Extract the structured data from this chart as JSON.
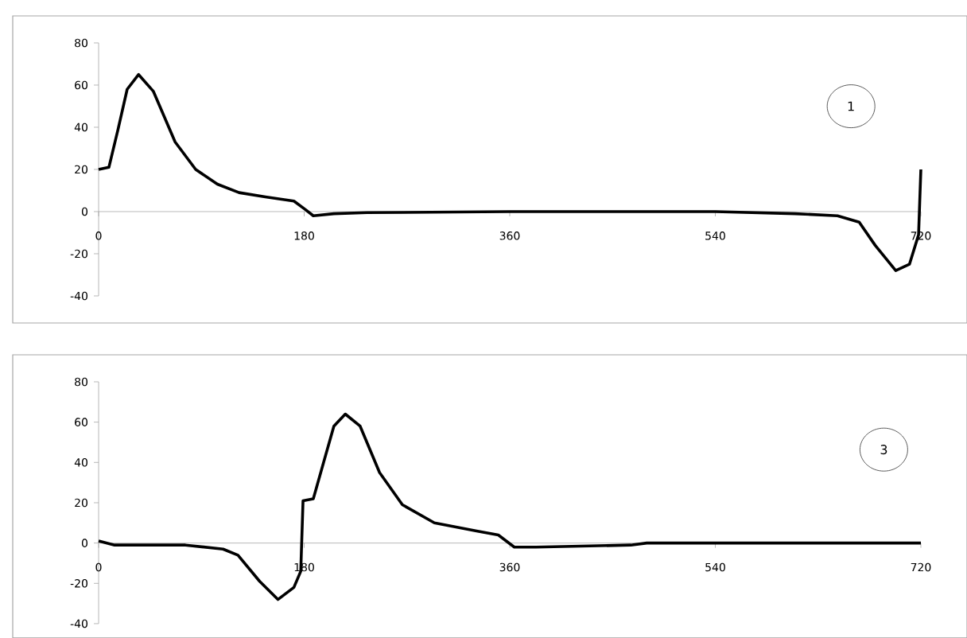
{
  "chart_data": [
    {
      "type": "line",
      "xlim": [
        0,
        720
      ],
      "xticks": [
        0,
        180,
        360,
        540,
        720
      ],
      "ylim": [
        -40,
        80
      ],
      "yticks": [
        -40,
        -20,
        0,
        20,
        40,
        60,
        80
      ],
      "marker": "none",
      "line_style": "solid",
      "annotations": [
        "1"
      ],
      "series": [
        {
          "color": "#000000",
          "x": [
            0,
            9,
            17,
            25,
            35,
            48,
            67,
            85,
            104,
            123,
            146,
            171,
            181,
            188,
            206,
            235,
            360,
            540,
            610,
            647,
            666,
            680,
            698,
            710,
            718,
            720
          ],
          "values": [
            20,
            21,
            39,
            58,
            65,
            57,
            33,
            20,
            13,
            9,
            7,
            5,
            1,
            -2,
            -1,
            -0.5,
            0,
            0,
            -1,
            -2,
            -5,
            -16,
            -28,
            -25,
            -11,
            20
          ]
        }
      ]
    },
    {
      "type": "line",
      "xlim": [
        0,
        720
      ],
      "xticks": [
        0,
        180,
        360,
        540,
        720
      ],
      "ylim": [
        -40,
        80
      ],
      "yticks": [
        -40,
        -20,
        0,
        20,
        40,
        60,
        80
      ],
      "marker": "none",
      "line_style": "solid",
      "annotations": [
        "3"
      ],
      "series": [
        {
          "color": "#000000",
          "x": [
            0,
            14,
            76,
            109,
            122,
            141,
            157,
            171,
            177,
            179,
            188,
            197,
            206,
            216,
            229,
            246,
            266,
            294,
            331,
            350,
            364,
            383,
            466,
            480,
            720
          ],
          "values": [
            1,
            -1,
            -1,
            -3,
            -6,
            -19,
            -28,
            -22,
            -14,
            21,
            22,
            40,
            58,
            64,
            58,
            35,
            19,
            10,
            6,
            4,
            -2,
            -2,
            -1,
            0,
            0
          ]
        }
      ]
    }
  ]
}
